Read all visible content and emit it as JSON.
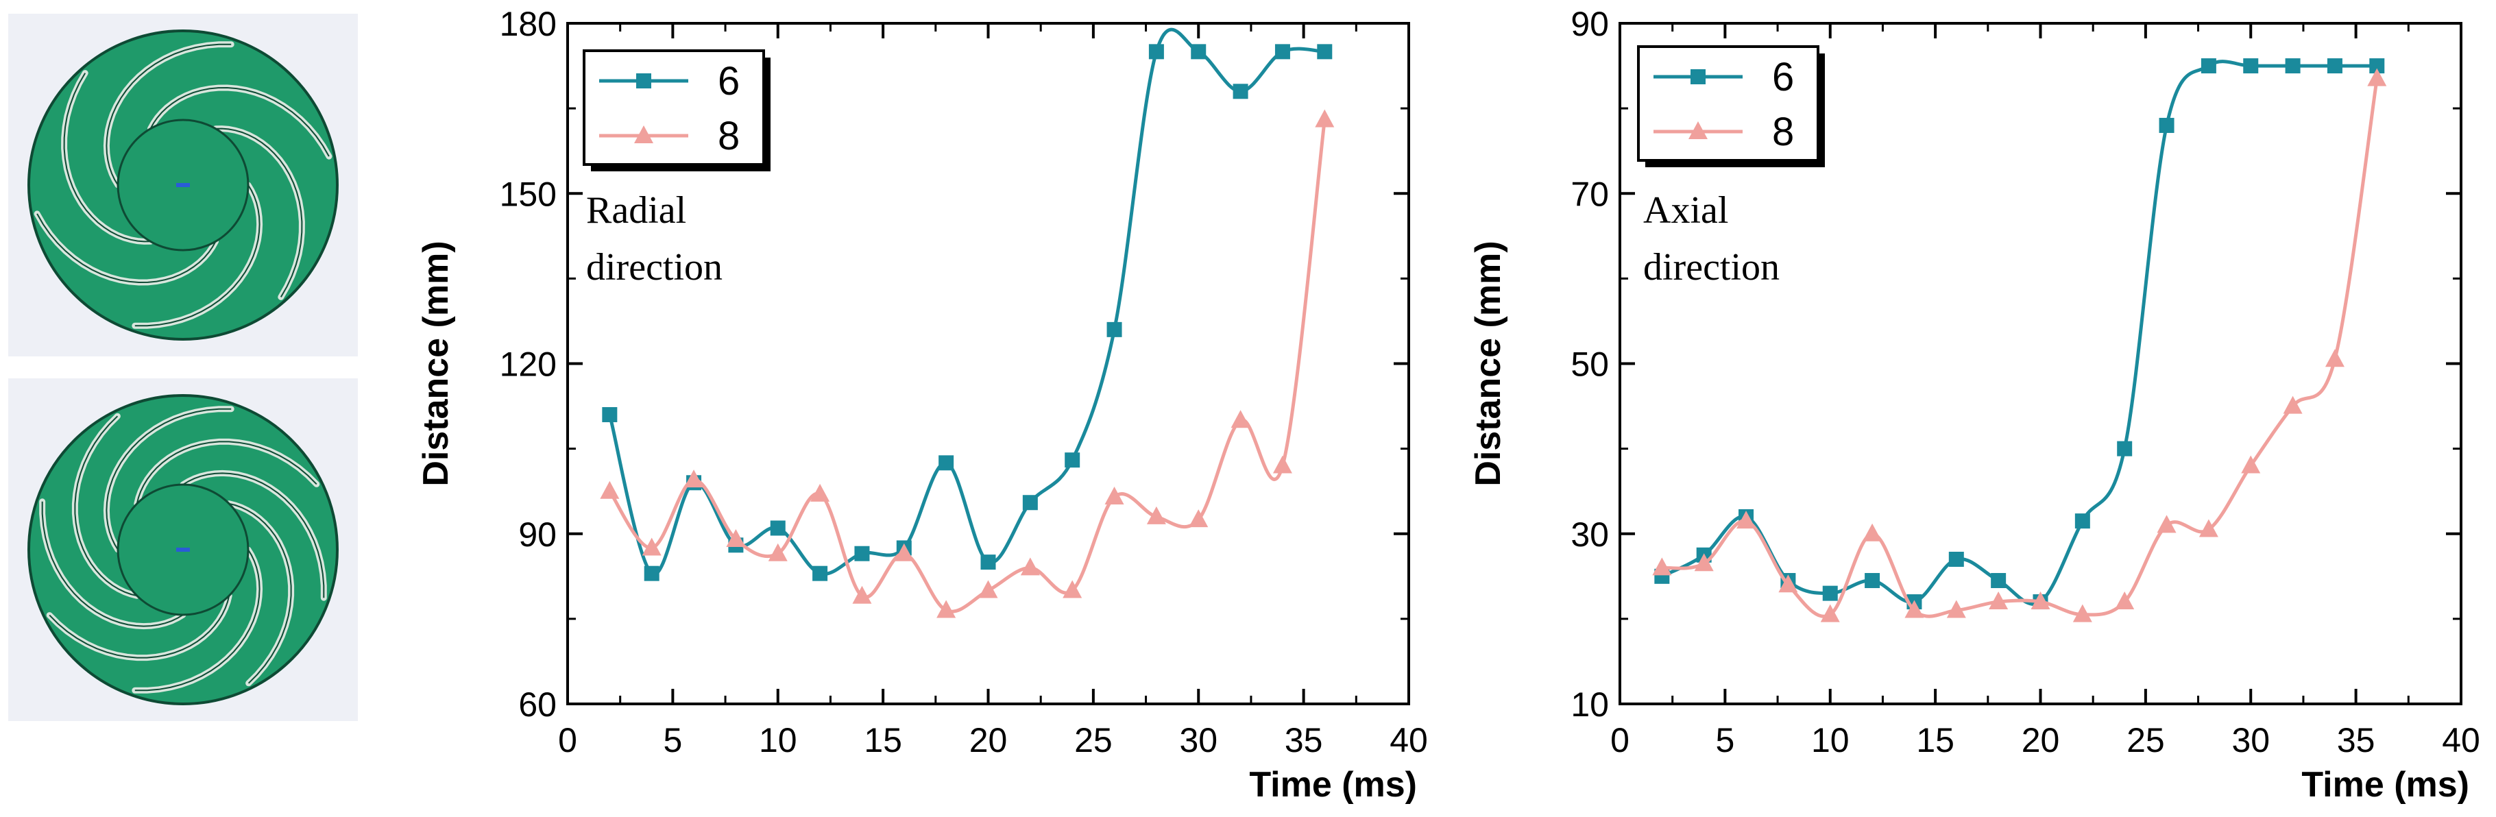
{
  "images": [
    {
      "name": "impeller-6-blades",
      "blades": 6
    },
    {
      "name": "impeller-8-blades",
      "blades": 8
    }
  ],
  "colors": {
    "impeller_fill": "#1f9a6a",
    "impeller_edge": "#0e4a34",
    "series_6": "#1a8a9c",
    "series_8": "#f0a09c"
  },
  "chart_data": [
    {
      "type": "line",
      "title": "",
      "xlabel": "Time (ms)",
      "ylabel": "Distance (mm)",
      "xlim": [
        0,
        40
      ],
      "ylim": [
        60,
        180
      ],
      "xticks": [
        0,
        5,
        10,
        15,
        20,
        25,
        30,
        35,
        40
      ],
      "yticks": [
        60,
        90,
        120,
        150,
        180
      ],
      "annotation": [
        "Radial",
        "direction"
      ],
      "legend": {
        "position": "top-left",
        "entries": [
          "6",
          "8"
        ]
      },
      "series": [
        {
          "name": "6",
          "marker": "square",
          "x": [
            2,
            4,
            6,
            8,
            10,
            12,
            14,
            16,
            18,
            20,
            22,
            24,
            26,
            28,
            30,
            32,
            34,
            36
          ],
          "y": [
            111,
            83,
            99,
            88,
            91,
            83,
            86.5,
            87.5,
            102.5,
            85,
            95.5,
            103,
            126,
            175,
            175,
            168,
            175,
            175
          ]
        },
        {
          "name": "8",
          "marker": "triangle",
          "x": [
            2,
            4,
            6,
            8,
            10,
            12,
            14,
            16,
            18,
            20,
            22,
            24,
            26,
            28,
            30,
            32,
            34,
            36
          ],
          "y": [
            97.5,
            87.5,
            99.5,
            89,
            86.5,
            97,
            79,
            86.5,
            76.5,
            80,
            84,
            80,
            96.5,
            93,
            92.5,
            110,
            102,
            163
          ]
        }
      ]
    },
    {
      "type": "line",
      "title": "",
      "xlabel": "Time (ms)",
      "ylabel": "Distance (mm)",
      "xlim": [
        0,
        40
      ],
      "ylim": [
        10,
        90
      ],
      "xticks": [
        0,
        5,
        10,
        15,
        20,
        25,
        30,
        35,
        40
      ],
      "yticks": [
        10,
        30,
        50,
        70,
        90
      ],
      "annotation": [
        "Axial",
        "direction"
      ],
      "legend": {
        "position": "top-left",
        "entries": [
          "6",
          "8"
        ]
      },
      "series": [
        {
          "name": "6",
          "marker": "square",
          "x": [
            2,
            4,
            6,
            8,
            10,
            12,
            14,
            16,
            18,
            20,
            22,
            24,
            26,
            28,
            30,
            32,
            34,
            36
          ],
          "y": [
            25,
            27.5,
            32,
            24.5,
            23,
            24.5,
            22,
            27,
            24.5,
            22,
            31.5,
            40,
            78,
            85,
            85,
            85,
            85,
            85
          ]
        },
        {
          "name": "8",
          "marker": "triangle",
          "x": [
            2,
            4,
            6,
            8,
            10,
            12,
            14,
            16,
            18,
            20,
            22,
            24,
            26,
            28,
            30,
            32,
            34,
            36
          ],
          "y": [
            26,
            26.5,
            31.5,
            24,
            20.5,
            30,
            21,
            21,
            22,
            22,
            20.5,
            22,
            31,
            30.5,
            38,
            45,
            50.5,
            83.5
          ]
        }
      ]
    }
  ]
}
